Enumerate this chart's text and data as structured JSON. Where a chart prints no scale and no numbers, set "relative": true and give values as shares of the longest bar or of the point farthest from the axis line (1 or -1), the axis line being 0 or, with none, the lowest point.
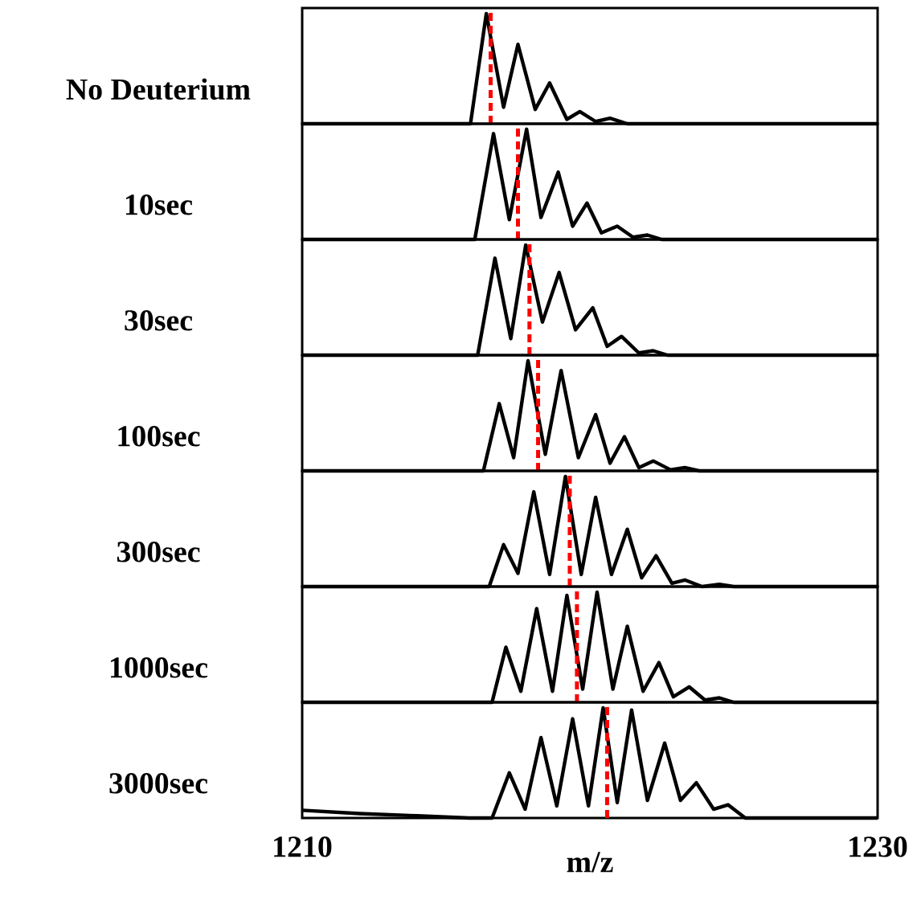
{
  "chart_data": [
    {
      "type": "line",
      "relative": true,
      "ylabel": "No Deuterium",
      "xlim": [
        1210,
        1230
      ],
      "tick_labels": false,
      "line_style": "solid",
      "x": [
        1210,
        1215.85,
        1216.4,
        1217.0,
        1217.5,
        1218.1,
        1218.6,
        1219.2,
        1219.65,
        1220.2,
        1220.7,
        1221.3,
        1230
      ],
      "values": [
        0,
        0,
        1.0,
        0.15,
        0.72,
        0.13,
        0.37,
        0.04,
        0.11,
        0.02,
        0.05,
        0,
        0
      ],
      "color": "#000000",
      "ref_lines": [
        {
          "axis": "x",
          "value": 1216.55,
          "color": "#ff0000",
          "line_style": "dashed"
        }
      ]
    },
    {
      "type": "line",
      "relative": true,
      "ylabel": "10sec",
      "xlim": [
        1210,
        1230
      ],
      "tick_labels": false,
      "line_style": "solid",
      "x": [
        1210,
        1216.0,
        1216.65,
        1217.2,
        1217.8,
        1218.3,
        1218.9,
        1219.4,
        1219.9,
        1220.4,
        1220.95,
        1221.5,
        1222.0,
        1222.5,
        1230
      ],
      "values": [
        0,
        0,
        0.96,
        0.18,
        1.0,
        0.2,
        0.61,
        0.12,
        0.33,
        0.06,
        0.12,
        0.02,
        0.04,
        0,
        0
      ],
      "color": "#000000",
      "ref_lines": [
        {
          "axis": "x",
          "value": 1217.5,
          "color": "#ff0000",
          "line_style": "dashed"
        }
      ]
    },
    {
      "type": "line",
      "relative": true,
      "ylabel": "30sec",
      "xlim": [
        1210,
        1230
      ],
      "tick_labels": false,
      "line_style": "solid",
      "x": [
        1210,
        1216.1,
        1216.7,
        1217.25,
        1217.77,
        1218.35,
        1218.93,
        1219.5,
        1220.1,
        1220.6,
        1221.1,
        1221.7,
        1222.2,
        1222.7,
        1230
      ],
      "values": [
        0,
        0,
        0.88,
        0.15,
        1.0,
        0.3,
        0.75,
        0.23,
        0.43,
        0.08,
        0.17,
        0.02,
        0.04,
        0,
        0
      ],
      "color": "#000000",
      "ref_lines": [
        {
          "axis": "x",
          "value": 1217.9,
          "color": "#ff0000",
          "line_style": "dashed"
        }
      ]
    },
    {
      "type": "line",
      "relative": true,
      "ylabel": "100sec",
      "xlim": [
        1210,
        1230
      ],
      "tick_labels": false,
      "line_style": "solid",
      "x": [
        1210,
        1216.3,
        1216.85,
        1217.35,
        1217.85,
        1218.45,
        1219.0,
        1219.6,
        1220.2,
        1220.7,
        1221.2,
        1221.7,
        1222.2,
        1222.8,
        1223.3,
        1223.8,
        1230
      ],
      "values": [
        0,
        0,
        0.61,
        0.12,
        1.0,
        0.15,
        0.91,
        0.12,
        0.51,
        0.07,
        0.31,
        0.03,
        0.09,
        0.01,
        0.03,
        0,
        0
      ],
      "color": "#000000",
      "ref_lines": [
        {
          "axis": "x",
          "value": 1218.2,
          "color": "#ff0000",
          "line_style": "dashed"
        }
      ]
    },
    {
      "type": "line",
      "relative": true,
      "ylabel": "300sec",
      "xlim": [
        1210,
        1230
      ],
      "tick_labels": false,
      "line_style": "solid",
      "x": [
        1210,
        1216.5,
        1217.0,
        1217.5,
        1218.05,
        1218.6,
        1219.15,
        1219.7,
        1220.2,
        1220.75,
        1221.3,
        1221.8,
        1222.3,
        1222.85,
        1223.3,
        1223.9,
        1224.5,
        1225.0,
        1230
      ],
      "values": [
        0,
        0,
        0.38,
        0.12,
        0.86,
        0.11,
        1.0,
        0.11,
        0.81,
        0.11,
        0.52,
        0.08,
        0.28,
        0.03,
        0.06,
        0,
        0.02,
        0,
        0
      ],
      "color": "#000000",
      "ref_lines": [
        {
          "axis": "x",
          "value": 1219.3,
          "color": "#ff0000",
          "line_style": "dashed"
        }
      ]
    },
    {
      "type": "line",
      "relative": true,
      "ylabel": "1000sec",
      "xlim": [
        1210,
        1230
      ],
      "tick_labels": false,
      "line_style": "solid",
      "x": [
        1210,
        1216.6,
        1217.08,
        1217.6,
        1218.15,
        1218.7,
        1219.2,
        1219.75,
        1220.25,
        1220.8,
        1221.3,
        1221.85,
        1222.4,
        1222.9,
        1223.45,
        1224.0,
        1224.5,
        1225.0,
        1230
      ],
      "values": [
        0,
        0,
        0.5,
        0.1,
        0.85,
        0.1,
        0.97,
        0.12,
        1.0,
        0.12,
        0.69,
        0.1,
        0.36,
        0.05,
        0.14,
        0.02,
        0.04,
        0,
        0
      ],
      "color": "#000000",
      "ref_lines": [
        {
          "axis": "x",
          "value": 1219.55,
          "color": "#ff0000",
          "line_style": "dashed"
        }
      ]
    },
    {
      "type": "line",
      "relative": true,
      "ylabel": "3000sec",
      "xlabel": "m/z",
      "xlim": [
        1210,
        1230
      ],
      "xticks": [
        1210,
        1230
      ],
      "tick_labels": "x",
      "line_style": "solid",
      "x": [
        1210,
        1212,
        1214,
        1215.8,
        1216.6,
        1217.2,
        1217.75,
        1218.3,
        1218.85,
        1219.4,
        1219.95,
        1220.46,
        1220.95,
        1221.45,
        1222.0,
        1222.6,
        1223.15,
        1223.7,
        1224.3,
        1224.8,
        1225.4,
        1230
      ],
      "values": [
        0.07,
        0.04,
        0.02,
        0,
        0,
        0.41,
        0.08,
        0.73,
        0.11,
        0.9,
        0.11,
        1.0,
        0.14,
        0.98,
        0.16,
        0.68,
        0.16,
        0.32,
        0.08,
        0.12,
        0,
        0
      ],
      "color": "#000000",
      "ref_lines": [
        {
          "axis": "x",
          "value": 1220.6,
          "color": "#ff0000",
          "line_style": "dashed"
        }
      ]
    }
  ]
}
